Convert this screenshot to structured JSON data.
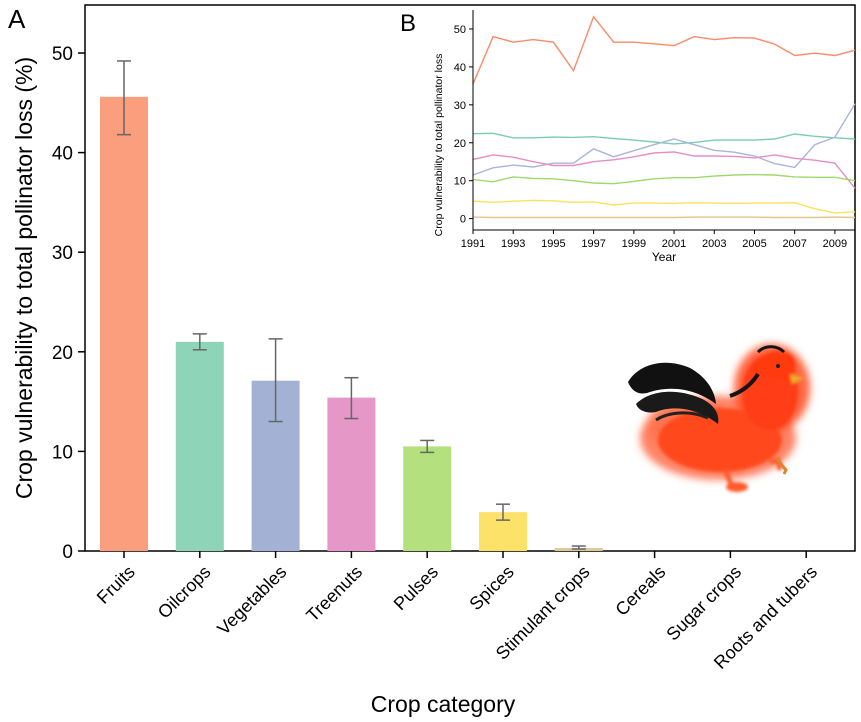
{
  "chart_data": [
    {
      "panel_label": "A",
      "type": "bar",
      "xlabel": "Crop category",
      "ylabel": "Crop vulnerability to total pollinator loss (%)",
      "ylim": [
        0,
        55
      ],
      "yticks": [
        0,
        10,
        20,
        30,
        40,
        50
      ],
      "categories": [
        "Fruits",
        "Oilcrops",
        "Vegetables",
        "Treenuts",
        "Pulses",
        "Spices",
        "Stimulant crops",
        "Cereals",
        "Sugar crops",
        "Roots and tubers"
      ],
      "values": [
        45.6,
        21.0,
        17.1,
        15.4,
        10.5,
        3.9,
        0.3,
        0,
        0,
        0
      ],
      "error_low": [
        41.8,
        20.2,
        13.0,
        13.3,
        9.9,
        3.1,
        0.2,
        0,
        0,
        0
      ],
      "error_high": [
        49.2,
        21.8,
        21.3,
        17.4,
        11.1,
        4.7,
        0.5,
        0,
        0,
        0
      ],
      "colors": [
        "#fb9e7e",
        "#8dd4b8",
        "#a3b2d4",
        "#e597c7",
        "#b5e07e",
        "#fde26a",
        "#e0c79a",
        "#cccccc",
        "#cccccc",
        "#cccccc"
      ],
      "grid": false
    },
    {
      "panel_label": "B",
      "type": "line",
      "xlabel": "Year",
      "ylabel": "Crop vulnerability to total pollinator loss",
      "xlim": [
        1991,
        2010
      ],
      "ylim": [
        -3,
        55
      ],
      "xticks": [
        1991,
        1993,
        1995,
        1997,
        1999,
        2001,
        2003,
        2005,
        2007,
        2009
      ],
      "yticks": [
        0,
        10,
        20,
        30,
        40,
        50
      ],
      "x": [
        1991,
        1992,
        1993,
        1994,
        1995,
        1996,
        1997,
        1998,
        1999,
        2000,
        2001,
        2002,
        2003,
        2004,
        2005,
        2006,
        2007,
        2008,
        2009,
        2010
      ],
      "series": [
        {
          "color": "#fb8a68",
          "values": [
            35.5,
            48,
            46.5,
            47.2,
            46.5,
            39,
            53.2,
            46.5,
            46.5,
            46.1,
            45.6,
            48,
            47.2,
            47.7,
            47.6,
            46,
            43,
            43.6,
            43,
            44.4
          ]
        },
        {
          "color": "#7cccb4",
          "values": [
            22.4,
            22.5,
            21.3,
            21.3,
            21.5,
            21.4,
            21.6,
            21.1,
            20.7,
            20.2,
            19.7,
            20.1,
            20.7,
            20.7,
            20.7,
            21,
            22.3,
            21.7,
            21.3,
            21
          ]
        },
        {
          "color": "#a9b4dc",
          "values": [
            11.5,
            13.4,
            14.1,
            13.6,
            14.6,
            14.6,
            18.4,
            16.3,
            17.9,
            19.5,
            21,
            19.5,
            18,
            17.5,
            16.5,
            14.5,
            13.5,
            19.5,
            21.5,
            30.3
          ]
        },
        {
          "color": "#e48ec6",
          "values": [
            15.6,
            16.8,
            16.2,
            15,
            14,
            14,
            15,
            15.5,
            16.3,
            17.3,
            17.6,
            16.5,
            16.5,
            16.4,
            16,
            16.8,
            15.9,
            15.4,
            14.6,
            8
          ]
        },
        {
          "color": "#9fd96b",
          "values": [
            10.3,
            9.7,
            11,
            10.6,
            10.5,
            10,
            9.4,
            9.2,
            9.8,
            10.5,
            10.8,
            10.8,
            11.2,
            11.5,
            11.6,
            11.5,
            11,
            10.9,
            10.9,
            10
          ]
        },
        {
          "color": "#fce25c",
          "values": [
            4.6,
            4.3,
            4.6,
            4.8,
            4.7,
            4.3,
            4.4,
            3.6,
            4.1,
            4.1,
            4,
            4.2,
            4.1,
            4,
            4.1,
            4.1,
            4.2,
            2.6,
            1.5,
            1.8
          ]
        },
        {
          "color": "#e3c48e",
          "values": [
            0.4,
            0.3,
            0.3,
            0.3,
            0.3,
            0.3,
            0.3,
            0.3,
            0.3,
            0.3,
            0.3,
            0.4,
            0.4,
            0.4,
            0.4,
            0.3,
            0.3,
            0.3,
            0.4,
            0.3
          ]
        }
      ]
    }
  ]
}
